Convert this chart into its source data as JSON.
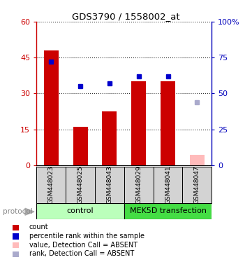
{
  "title": "GDS3790 / 1558002_at",
  "samples": [
    "GSM448023",
    "GSM448025",
    "GSM448043",
    "GSM448029",
    "GSM448041",
    "GSM448047"
  ],
  "bar_values": [
    48.0,
    16.0,
    22.5,
    35.0,
    35.0,
    4.5
  ],
  "bar_colors": [
    "#cc0000",
    "#cc0000",
    "#cc0000",
    "#cc0000",
    "#cc0000",
    "#ffbbbb"
  ],
  "rank_values": [
    72.0,
    55.0,
    57.0,
    62.0,
    62.0,
    44.0
  ],
  "rank_colors": [
    "#0000cc",
    "#0000cc",
    "#0000cc",
    "#0000cc",
    "#0000cc",
    "#aaaacc"
  ],
  "ylim_left": [
    0,
    60
  ],
  "ylim_right": [
    0,
    100
  ],
  "yticks_left": [
    0,
    15,
    30,
    45,
    60
  ],
  "yticks_right": [
    0,
    25,
    50,
    75,
    100
  ],
  "ytick_labels_left": [
    "0",
    "15",
    "30",
    "45",
    "60"
  ],
  "ytick_labels_right": [
    "0",
    "25",
    "50",
    "75",
    "100%"
  ],
  "control_label": "control",
  "transfection_label": "MEK5D transfection",
  "protocol_label": "protocol",
  "control_color": "#bbffbb",
  "transfection_color": "#44dd44",
  "legend_items": [
    {
      "label": "count",
      "color": "#cc0000"
    },
    {
      "label": "percentile rank within the sample",
      "color": "#0000cc"
    },
    {
      "label": "value, Detection Call = ABSENT",
      "color": "#ffbbbb"
    },
    {
      "label": "rank, Detection Call = ABSENT",
      "color": "#aaaacc"
    }
  ],
  "bar_width": 0.5,
  "rank_marker_size": 5,
  "left_axis_color": "#cc0000",
  "right_axis_color": "#0000bb",
  "grid_linestyle": "dotted",
  "grid_color": "#444444"
}
